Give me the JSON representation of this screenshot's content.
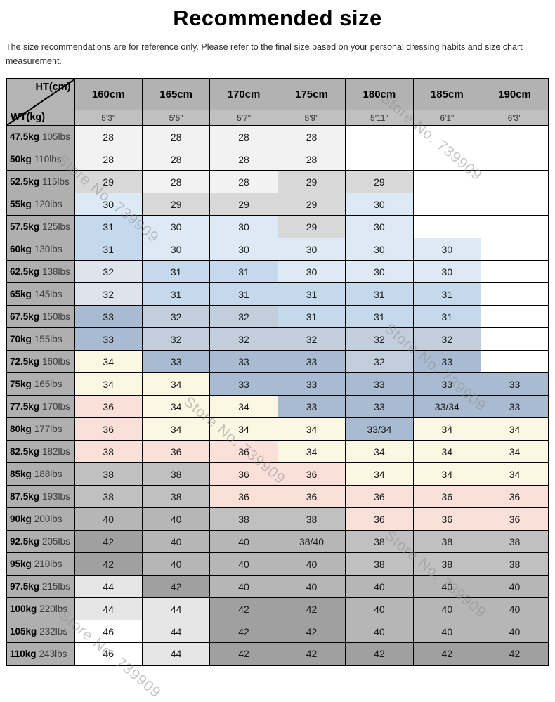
{
  "title": "Recommended size",
  "subtitle": "The size recommendations are for reference only. Please refer to the final size based on your personal dressing habits and size chart measurement.",
  "watermark": {
    "text": "Store No. 739909",
    "color": "#8f8f8f"
  },
  "corner": {
    "top_label": "HT(cm)",
    "bottom_label": "WT(kg)"
  },
  "palette": {
    "w": "#ffffff",
    "a": "#f2f2f2",
    "b": "#d8d8d8",
    "c": "#dde9f4",
    "d": "#c5d9ed",
    "e": "#dfe4ec",
    "f": "#c3cedd",
    "g": "#a9bbd1",
    "h": "#fbf7e3",
    "i": "#f9e0d8",
    "j": "#c0c0c0",
    "k": "#b6b6b6",
    "l": "#a0a0a0",
    "m": "#e6e6e6"
  },
  "chart_data": {
    "type": "table",
    "title": "Recommended size",
    "columns_cm": [
      "160cm",
      "165cm",
      "170cm",
      "175cm",
      "180cm",
      "185cm",
      "190cm"
    ],
    "columns_ft": [
      "5'3\"",
      "5'5\"",
      "5'7\"",
      "5'9\"",
      "5'11\"",
      "6'1\"",
      "6'3\""
    ],
    "rows": [
      {
        "wt_kg": "47.5kg",
        "wt_lbs": "105lbs",
        "values": [
          "28",
          "28",
          "28",
          "28",
          "",
          "",
          ""
        ],
        "colors": [
          "a",
          "a",
          "a",
          "a",
          "w",
          "w",
          "w"
        ]
      },
      {
        "wt_kg": "50kg",
        "wt_lbs": "110lbs",
        "values": [
          "28",
          "28",
          "28",
          "28",
          "",
          "",
          ""
        ],
        "colors": [
          "a",
          "a",
          "a",
          "a",
          "w",
          "w",
          "w"
        ]
      },
      {
        "wt_kg": "52.5kg",
        "wt_lbs": "115lbs",
        "values": [
          "29",
          "28",
          "28",
          "29",
          "29",
          "",
          ""
        ],
        "colors": [
          "b",
          "a",
          "a",
          "b",
          "b",
          "w",
          "w"
        ]
      },
      {
        "wt_kg": "55kg",
        "wt_lbs": "120lbs",
        "values": [
          "30",
          "29",
          "29",
          "29",
          "30",
          "",
          ""
        ],
        "colors": [
          "c",
          "b",
          "b",
          "b",
          "c",
          "w",
          "w"
        ]
      },
      {
        "wt_kg": "57.5kg",
        "wt_lbs": "125lbs",
        "values": [
          "31",
          "30",
          "30",
          "29",
          "30",
          "",
          ""
        ],
        "colors": [
          "d",
          "c",
          "c",
          "b",
          "c",
          "w",
          "w"
        ]
      },
      {
        "wt_kg": "60kg",
        "wt_lbs": "130lbs",
        "values": [
          "31",
          "30",
          "30",
          "30",
          "30",
          "30",
          ""
        ],
        "colors": [
          "d",
          "c",
          "c",
          "c",
          "c",
          "c",
          "w"
        ]
      },
      {
        "wt_kg": "62.5kg",
        "wt_lbs": "138lbs",
        "values": [
          "32",
          "31",
          "31",
          "30",
          "30",
          "30",
          ""
        ],
        "colors": [
          "e",
          "d",
          "d",
          "c",
          "c",
          "c",
          "w"
        ]
      },
      {
        "wt_kg": "65kg",
        "wt_lbs": "145lbs",
        "values": [
          "32",
          "31",
          "31",
          "31",
          "31",
          "31",
          ""
        ],
        "colors": [
          "e",
          "d",
          "d",
          "d",
          "d",
          "d",
          "w"
        ]
      },
      {
        "wt_kg": "67.5kg",
        "wt_lbs": "150lbs",
        "values": [
          "33",
          "32",
          "32",
          "31",
          "31",
          "31",
          ""
        ],
        "colors": [
          "g",
          "f",
          "f",
          "d",
          "d",
          "d",
          "w"
        ]
      },
      {
        "wt_kg": "70kg",
        "wt_lbs": "155lbs",
        "values": [
          "33",
          "32",
          "32",
          "32",
          "32",
          "32",
          ""
        ],
        "colors": [
          "g",
          "f",
          "f",
          "f",
          "f",
          "f",
          "w"
        ]
      },
      {
        "wt_kg": "72.5kg",
        "wt_lbs": "160lbs",
        "values": [
          "34",
          "33",
          "33",
          "33",
          "32",
          "33",
          ""
        ],
        "colors": [
          "h",
          "g",
          "g",
          "g",
          "f",
          "g",
          "w"
        ]
      },
      {
        "wt_kg": "75kg",
        "wt_lbs": "165lbs",
        "values": [
          "34",
          "34",
          "33",
          "33",
          "33",
          "33",
          "33"
        ],
        "colors": [
          "h",
          "h",
          "g",
          "g",
          "g",
          "g",
          "g"
        ]
      },
      {
        "wt_kg": "77.5kg",
        "wt_lbs": "170lbs",
        "values": [
          "36",
          "34",
          "34",
          "33",
          "33",
          "33/34",
          "33"
        ],
        "colors": [
          "i",
          "h",
          "h",
          "g",
          "g",
          "g",
          "g"
        ]
      },
      {
        "wt_kg": "80kg",
        "wt_lbs": "177lbs",
        "values": [
          "36",
          "34",
          "34",
          "34",
          "33/34",
          "34",
          "34"
        ],
        "colors": [
          "i",
          "h",
          "h",
          "h",
          "g",
          "h",
          "h"
        ]
      },
      {
        "wt_kg": "82.5kg",
        "wt_lbs": "182lbs",
        "values": [
          "38",
          "36",
          "36",
          "34",
          "34",
          "34",
          "34"
        ],
        "colors": [
          "i",
          "i",
          "i",
          "h",
          "h",
          "h",
          "h"
        ]
      },
      {
        "wt_kg": "85kg",
        "wt_lbs": "188lbs",
        "values": [
          "38",
          "38",
          "36",
          "36",
          "34",
          "34",
          "34"
        ],
        "colors": [
          "j",
          "j",
          "i",
          "i",
          "h",
          "h",
          "h"
        ]
      },
      {
        "wt_kg": "87.5kg",
        "wt_lbs": "193lbs",
        "values": [
          "38",
          "38",
          "36",
          "36",
          "36",
          "36",
          "36"
        ],
        "colors": [
          "j",
          "j",
          "i",
          "i",
          "i",
          "i",
          "i"
        ]
      },
      {
        "wt_kg": "90kg",
        "wt_lbs": "200lbs",
        "values": [
          "40",
          "40",
          "38",
          "38",
          "36",
          "36",
          "36"
        ],
        "colors": [
          "k",
          "k",
          "j",
          "j",
          "i",
          "i",
          "i"
        ]
      },
      {
        "wt_kg": "92.5kg",
        "wt_lbs": "205lbs",
        "values": [
          "42",
          "40",
          "40",
          "38/40",
          "38",
          "38",
          "38"
        ],
        "colors": [
          "l",
          "k",
          "k",
          "k",
          "j",
          "j",
          "j"
        ]
      },
      {
        "wt_kg": "95kg",
        "wt_lbs": "210lbs",
        "values": [
          "42",
          "40",
          "40",
          "40",
          "38",
          "38",
          "38"
        ],
        "colors": [
          "l",
          "k",
          "k",
          "k",
          "j",
          "j",
          "j"
        ]
      },
      {
        "wt_kg": "97.5kg",
        "wt_lbs": "215lbs",
        "values": [
          "44",
          "42",
          "40",
          "40",
          "40",
          "40",
          "40"
        ],
        "colors": [
          "m",
          "l",
          "k",
          "k",
          "k",
          "k",
          "k"
        ]
      },
      {
        "wt_kg": "100kg",
        "wt_lbs": "220lbs",
        "values": [
          "44",
          "44",
          "42",
          "42",
          "40",
          "40",
          "40"
        ],
        "colors": [
          "m",
          "m",
          "l",
          "l",
          "k",
          "k",
          "k"
        ]
      },
      {
        "wt_kg": "105kg",
        "wt_lbs": "232lbs",
        "values": [
          "46",
          "44",
          "42",
          "42",
          "40",
          "40",
          "40"
        ],
        "colors": [
          "w",
          "m",
          "l",
          "l",
          "k",
          "k",
          "k"
        ]
      },
      {
        "wt_kg": "110kg",
        "wt_lbs": "243lbs",
        "values": [
          "46",
          "44",
          "42",
          "42",
          "42",
          "42",
          "42"
        ],
        "colors": [
          "w",
          "m",
          "l",
          "l",
          "l",
          "l",
          "l"
        ]
      }
    ]
  }
}
